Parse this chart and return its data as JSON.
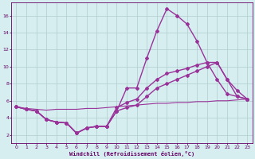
{
  "bg_color": "#d6eef0",
  "line_color": "#993399",
  "xlabel": "Windchill (Refroidissement éolien,°C)",
  "xlabel_color": "#660066",
  "tick_color": "#660066",
  "grid_color": "#b0cccc",
  "xlim": [
    -0.5,
    23.5
  ],
  "ylim": [
    1.0,
    17.5
  ],
  "yticks": [
    2,
    4,
    6,
    8,
    10,
    12,
    14,
    16
  ],
  "xticks": [
    0,
    1,
    2,
    3,
    4,
    5,
    6,
    7,
    8,
    9,
    10,
    11,
    12,
    13,
    14,
    15,
    16,
    17,
    18,
    19,
    20,
    21,
    22,
    23
  ],
  "line1_x": [
    0,
    1,
    2,
    3,
    4,
    5,
    6,
    7,
    8,
    9,
    10,
    11,
    12,
    13,
    14,
    15,
    16,
    17,
    18,
    19,
    20,
    21,
    22,
    23
  ],
  "line1_y": [
    5.3,
    5.0,
    4.8,
    3.8,
    3.5,
    3.4,
    2.2,
    2.8,
    3.0,
    3.0,
    4.8,
    7.5,
    7.5,
    11.0,
    14.2,
    16.8,
    16.0,
    15.0,
    13.0,
    10.5,
    8.5,
    6.8,
    6.5,
    6.2
  ],
  "line2_x": [
    0,
    1,
    2,
    3,
    4,
    5,
    6,
    7,
    8,
    9,
    10,
    11,
    12,
    13,
    14,
    15,
    16,
    17,
    18,
    19,
    20,
    21,
    22,
    23
  ],
  "line2_y": [
    5.3,
    5.0,
    4.8,
    3.8,
    3.5,
    3.4,
    2.2,
    2.8,
    3.0,
    3.0,
    5.2,
    5.8,
    6.2,
    7.5,
    8.5,
    9.2,
    9.5,
    9.8,
    10.2,
    10.5,
    10.5,
    8.5,
    6.5,
    6.2
  ],
  "line3_x": [
    0,
    1,
    2,
    3,
    4,
    5,
    6,
    7,
    8,
    9,
    10,
    11,
    12,
    13,
    14,
    15,
    16,
    17,
    18,
    19,
    20,
    21,
    22,
    23
  ],
  "line3_y": [
    5.3,
    5.0,
    4.8,
    3.8,
    3.5,
    3.4,
    2.2,
    2.8,
    3.0,
    3.0,
    4.8,
    5.2,
    5.5,
    6.5,
    7.5,
    8.0,
    8.5,
    9.0,
    9.5,
    10.0,
    10.5,
    8.5,
    7.2,
    6.2
  ],
  "line4_x": [
    0,
    1,
    2,
    3,
    4,
    5,
    6,
    7,
    8,
    9,
    10,
    11,
    12,
    13,
    14,
    15,
    16,
    17,
    18,
    19,
    20,
    21,
    22,
    23
  ],
  "line4_y": [
    5.3,
    5.1,
    5.0,
    4.9,
    5.0,
    5.0,
    5.0,
    5.1,
    5.1,
    5.2,
    5.3,
    5.4,
    5.5,
    5.6,
    5.7,
    5.7,
    5.8,
    5.8,
    5.9,
    5.9,
    6.0,
    6.0,
    6.1,
    6.2
  ],
  "marker": "D",
  "markersize": 2,
  "linewidth": 1.0
}
